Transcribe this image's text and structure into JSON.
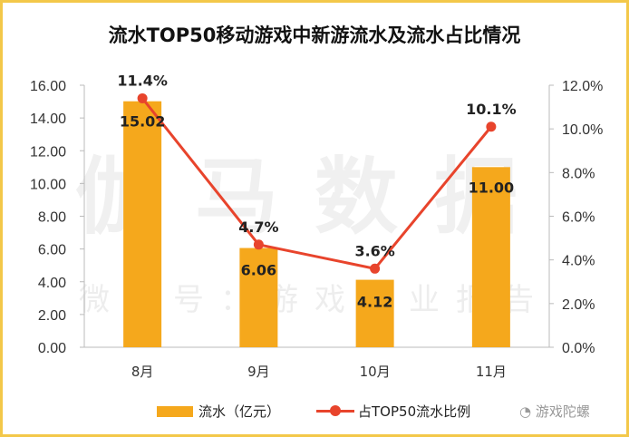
{
  "chart_data": {
    "type": "bar+line",
    "title": "流水TOP50移动游戏中新游流水及流水占比情况",
    "categories": [
      "8月",
      "9月",
      "10月",
      "11月"
    ],
    "series": [
      {
        "name": "流水（亿元）",
        "type": "bar",
        "axis": "left",
        "values": [
          15.02,
          6.06,
          4.12,
          11.0
        ],
        "labels": [
          "15.02",
          "6.06",
          "4.12",
          "11.00"
        ],
        "color": "#f5a81c"
      },
      {
        "name": "占TOP50流水比例",
        "type": "line",
        "axis": "right",
        "values": [
          11.4,
          4.7,
          3.6,
          10.1
        ],
        "labels": [
          "11.4%",
          "4.7%",
          "3.6%",
          "10.1%"
        ],
        "color": "#e8442c"
      }
    ],
    "left_axis": {
      "range": [
        0,
        16
      ],
      "ticks": [
        "0.00",
        "2.00",
        "4.00",
        "6.00",
        "8.00",
        "10.00",
        "12.00",
        "14.00",
        "16.00"
      ]
    },
    "right_axis": {
      "range": [
        0,
        12
      ],
      "ticks": [
        "0.0%",
        "2.0%",
        "4.0%",
        "6.0%",
        "8.0%",
        "10.0%",
        "12.0%"
      ]
    },
    "grid": false,
    "legend": "bottom"
  },
  "watermark": {
    "main": "伽马数据",
    "sub": "微信号：游戏产业报告"
  },
  "brand": "游戏陀螺",
  "border_color": "#f3c84a"
}
